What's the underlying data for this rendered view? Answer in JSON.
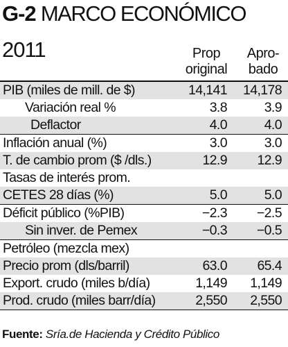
{
  "header": {
    "title_bold": "G-2",
    "title": "MARCO ECONÓMICO",
    "year": "2011"
  },
  "table": {
    "columns": [
      [
        "Prop",
        "original"
      ],
      [
        "Apro-",
        "bado"
      ]
    ],
    "rows": [
      [
        "PIB (miles de mill. de $)",
        "14,141",
        "14,178"
      ],
      [
        "Variación real %",
        "3.8",
        "3.9"
      ],
      [
        "Deflactor",
        "4.0",
        "4.0"
      ],
      [
        "Inflación anual (%)",
        "3.0",
        "3.0"
      ],
      [
        "T. de cambio prom ($ /dls.)",
        "12.9",
        "12.9"
      ],
      [
        "Tasas de interés prom."
      ],
      [
        "CETES 28 días (%)",
        "5.0",
        "5.0"
      ],
      [
        "Déficit público (%PIB)",
        "−2.3",
        "−2.5"
      ],
      [
        "Sin inver. de Pemex",
        "−0.3",
        "−0.5"
      ],
      [
        "Petróleo (mezcla mex)"
      ],
      [
        "Precio prom (dls/barril)",
        "63.0",
        "65.4"
      ],
      [
        "Export. crudo (miles b/día)",
        "1,149",
        "1,149"
      ],
      [
        "Prod. crudo (miles barr/día)",
        "2,550",
        "2,550"
      ]
    ]
  },
  "footer": {
    "label": "Fuente:",
    "source": "Sría.de Hacienda y Crédito Público"
  }
}
